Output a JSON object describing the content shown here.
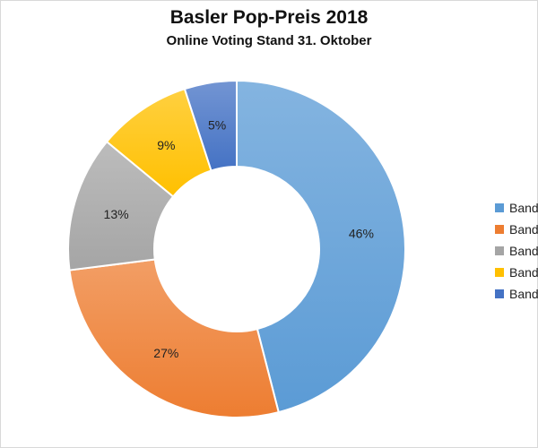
{
  "chart_data": {
    "type": "pie",
    "title": "Basler Pop-Preis 2018",
    "subtitle": "Online Voting Stand 31. Oktober",
    "legend_position": "right",
    "donut": true,
    "categories": [
      "Band",
      "Band",
      "Band",
      "Band",
      "Band"
    ],
    "values": [
      46,
      27,
      13,
      9,
      5
    ],
    "labels": [
      "46%",
      "27%",
      "13%",
      "9%",
      "5%"
    ],
    "colors": [
      "#5b9bd5",
      "#ed7d31",
      "#a5a5a5",
      "#ffc000",
      "#4472c4"
    ]
  }
}
